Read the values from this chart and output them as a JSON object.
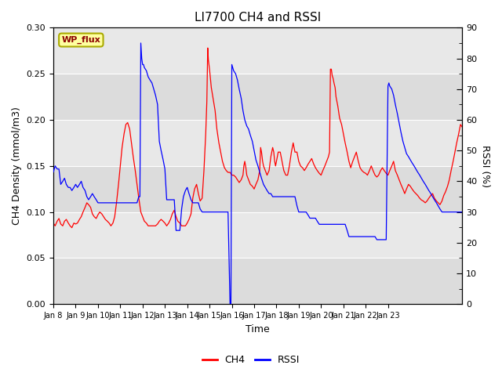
{
  "title": "LI7700 CH4 and RSSI",
  "xlabel": "Time",
  "ylabel_left": "CH4 Density (mmol/m3)",
  "ylabel_right": "RSSI (%)",
  "legend_label": "WP_flux",
  "ch4_color": "#FF0000",
  "rssi_color": "#0000FF",
  "ylim_left": [
    0.0,
    0.3
  ],
  "ylim_right": [
    0,
    90
  ],
  "yticks_left": [
    0.0,
    0.05,
    0.1,
    0.15,
    0.2,
    0.25,
    0.3
  ],
  "yticks_right": [
    0,
    10,
    20,
    30,
    40,
    50,
    60,
    70,
    80,
    90
  ],
  "background_color": "#E8E8E8",
  "figure_bg": "#FFFFFF",
  "tick_labels": [
    "Jan 8",
    "Jan 9",
    "Jan 10",
    "Jan 11",
    "Jan 12",
    "Jan 13",
    "Jan 14",
    "Jan 15",
    "Jan 16",
    "Jan 17",
    "Jan 18",
    "Jan 19",
    "Jan 20",
    "Jan 21",
    "Jan 22",
    "Jan 23"
  ],
  "ch4_data": [
    [
      0,
      0.088
    ],
    [
      0.08,
      0.085
    ],
    [
      0.17,
      0.09
    ],
    [
      0.25,
      0.093
    ],
    [
      0.33,
      0.087
    ],
    [
      0.42,
      0.085
    ],
    [
      0.5,
      0.09
    ],
    [
      0.58,
      0.092
    ],
    [
      0.67,
      0.088
    ],
    [
      0.75,
      0.085
    ],
    [
      0.83,
      0.083
    ],
    [
      0.92,
      0.088
    ],
    [
      1.0,
      0.087
    ],
    [
      1.08,
      0.088
    ],
    [
      1.17,
      0.092
    ],
    [
      1.25,
      0.095
    ],
    [
      1.33,
      0.1
    ],
    [
      1.42,
      0.105
    ],
    [
      1.5,
      0.11
    ],
    [
      1.58,
      0.108
    ],
    [
      1.67,
      0.105
    ],
    [
      1.75,
      0.098
    ],
    [
      1.83,
      0.095
    ],
    [
      1.92,
      0.093
    ],
    [
      2.0,
      0.097
    ],
    [
      2.08,
      0.1
    ],
    [
      2.17,
      0.098
    ],
    [
      2.25,
      0.095
    ],
    [
      2.33,
      0.092
    ],
    [
      2.42,
      0.09
    ],
    [
      2.5,
      0.088
    ],
    [
      2.58,
      0.085
    ],
    [
      2.67,
      0.088
    ],
    [
      2.75,
      0.095
    ],
    [
      2.83,
      0.11
    ],
    [
      2.92,
      0.13
    ],
    [
      3.0,
      0.15
    ],
    [
      3.08,
      0.17
    ],
    [
      3.17,
      0.185
    ],
    [
      3.25,
      0.195
    ],
    [
      3.33,
      0.197
    ],
    [
      3.42,
      0.19
    ],
    [
      3.5,
      0.175
    ],
    [
      3.58,
      0.16
    ],
    [
      3.67,
      0.145
    ],
    [
      3.75,
      0.13
    ],
    [
      3.83,
      0.115
    ],
    [
      3.92,
      0.1
    ],
    [
      4.0,
      0.095
    ],
    [
      4.08,
      0.09
    ],
    [
      4.17,
      0.088
    ],
    [
      4.25,
      0.085
    ],
    [
      4.33,
      0.085
    ],
    [
      4.42,
      0.085
    ],
    [
      4.5,
      0.085
    ],
    [
      4.58,
      0.085
    ],
    [
      4.67,
      0.087
    ],
    [
      4.75,
      0.09
    ],
    [
      4.83,
      0.092
    ],
    [
      4.92,
      0.09
    ],
    [
      5.0,
      0.088
    ],
    [
      5.08,
      0.085
    ],
    [
      5.17,
      0.088
    ],
    [
      5.25,
      0.092
    ],
    [
      5.33,
      0.098
    ],
    [
      5.42,
      0.102
    ],
    [
      5.5,
      0.095
    ],
    [
      5.58,
      0.09
    ],
    [
      5.67,
      0.088
    ],
    [
      5.75,
      0.085
    ],
    [
      5.83,
      0.085
    ],
    [
      5.92,
      0.085
    ],
    [
      6.0,
      0.088
    ],
    [
      6.08,
      0.092
    ],
    [
      6.17,
      0.098
    ],
    [
      6.25,
      0.115
    ],
    [
      6.33,
      0.125
    ],
    [
      6.42,
      0.13
    ],
    [
      6.5,
      0.12
    ],
    [
      6.58,
      0.112
    ],
    [
      6.67,
      0.115
    ],
    [
      6.75,
      0.145
    ],
    [
      6.83,
      0.185
    ],
    [
      6.88,
      0.22
    ],
    [
      6.92,
      0.278
    ],
    [
      6.95,
      0.265
    ],
    [
      7.0,
      0.255
    ],
    [
      7.04,
      0.245
    ],
    [
      7.08,
      0.235
    ],
    [
      7.17,
      0.222
    ],
    [
      7.25,
      0.21
    ],
    [
      7.33,
      0.19
    ],
    [
      7.42,
      0.175
    ],
    [
      7.5,
      0.165
    ],
    [
      7.58,
      0.155
    ],
    [
      7.67,
      0.148
    ],
    [
      7.75,
      0.145
    ],
    [
      7.83,
      0.143
    ],
    [
      7.92,
      0.143
    ],
    [
      8.0,
      0.14
    ],
    [
      8.08,
      0.14
    ],
    [
      8.17,
      0.138
    ],
    [
      8.25,
      0.135
    ],
    [
      8.33,
      0.132
    ],
    [
      8.42,
      0.135
    ],
    [
      8.5,
      0.14
    ],
    [
      8.54,
      0.15
    ],
    [
      8.58,
      0.155
    ],
    [
      8.63,
      0.148
    ],
    [
      8.67,
      0.14
    ],
    [
      8.75,
      0.135
    ],
    [
      8.83,
      0.13
    ],
    [
      8.92,
      0.128
    ],
    [
      9.0,
      0.125
    ],
    [
      9.08,
      0.13
    ],
    [
      9.17,
      0.135
    ],
    [
      9.25,
      0.145
    ],
    [
      9.29,
      0.17
    ],
    [
      9.33,
      0.165
    ],
    [
      9.38,
      0.155
    ],
    [
      9.42,
      0.15
    ],
    [
      9.5,
      0.145
    ],
    [
      9.58,
      0.14
    ],
    [
      9.67,
      0.145
    ],
    [
      9.75,
      0.16
    ],
    [
      9.83,
      0.17
    ],
    [
      9.88,
      0.165
    ],
    [
      9.92,
      0.155
    ],
    [
      9.96,
      0.15
    ],
    [
      10.0,
      0.155
    ],
    [
      10.08,
      0.165
    ],
    [
      10.17,
      0.165
    ],
    [
      10.25,
      0.155
    ],
    [
      10.33,
      0.145
    ],
    [
      10.42,
      0.14
    ],
    [
      10.5,
      0.14
    ],
    [
      10.58,
      0.15
    ],
    [
      10.67,
      0.165
    ],
    [
      10.75,
      0.175
    ],
    [
      10.83,
      0.165
    ],
    [
      10.92,
      0.165
    ],
    [
      11.0,
      0.155
    ],
    [
      11.08,
      0.15
    ],
    [
      11.17,
      0.148
    ],
    [
      11.25,
      0.145
    ],
    [
      11.33,
      0.148
    ],
    [
      11.42,
      0.152
    ],
    [
      11.5,
      0.155
    ],
    [
      11.58,
      0.158
    ],
    [
      11.67,
      0.152
    ],
    [
      11.75,
      0.148
    ],
    [
      11.83,
      0.145
    ],
    [
      11.92,
      0.142
    ],
    [
      12.0,
      0.14
    ],
    [
      12.08,
      0.145
    ],
    [
      12.17,
      0.15
    ],
    [
      12.25,
      0.155
    ],
    [
      12.33,
      0.16
    ],
    [
      12.38,
      0.165
    ],
    [
      12.42,
      0.255
    ],
    [
      12.46,
      0.255
    ],
    [
      12.5,
      0.248
    ],
    [
      12.54,
      0.245
    ],
    [
      12.58,
      0.24
    ],
    [
      12.63,
      0.235
    ],
    [
      12.67,
      0.225
    ],
    [
      12.75,
      0.215
    ],
    [
      12.83,
      0.202
    ],
    [
      12.92,
      0.195
    ],
    [
      13.0,
      0.185
    ],
    [
      13.08,
      0.175
    ],
    [
      13.17,
      0.165
    ],
    [
      13.25,
      0.155
    ],
    [
      13.33,
      0.148
    ],
    [
      13.42,
      0.155
    ],
    [
      13.5,
      0.16
    ],
    [
      13.58,
      0.165
    ],
    [
      13.67,
      0.155
    ],
    [
      13.75,
      0.148
    ],
    [
      13.83,
      0.145
    ],
    [
      13.92,
      0.143
    ],
    [
      14.0,
      0.142
    ],
    [
      14.08,
      0.14
    ],
    [
      14.17,
      0.145
    ],
    [
      14.25,
      0.15
    ],
    [
      14.33,
      0.145
    ],
    [
      14.42,
      0.14
    ],
    [
      14.5,
      0.138
    ],
    [
      14.58,
      0.14
    ],
    [
      14.67,
      0.145
    ],
    [
      14.75,
      0.148
    ],
    [
      14.83,
      0.145
    ],
    [
      14.92,
      0.142
    ],
    [
      15.0,
      0.14
    ],
    [
      15.08,
      0.145
    ],
    [
      15.17,
      0.15
    ],
    [
      15.25,
      0.155
    ],
    [
      15.33,
      0.145
    ],
    [
      15.42,
      0.14
    ],
    [
      15.5,
      0.135
    ],
    [
      15.58,
      0.13
    ],
    [
      15.67,
      0.125
    ],
    [
      15.75,
      0.12
    ],
    [
      15.83,
      0.125
    ],
    [
      15.92,
      0.13
    ],
    [
      16.0,
      0.128
    ],
    [
      16.08,
      0.125
    ],
    [
      16.17,
      0.122
    ],
    [
      16.25,
      0.12
    ],
    [
      16.33,
      0.118
    ],
    [
      16.42,
      0.115
    ],
    [
      16.5,
      0.113
    ],
    [
      16.58,
      0.112
    ],
    [
      16.67,
      0.11
    ],
    [
      16.75,
      0.112
    ],
    [
      16.83,
      0.115
    ],
    [
      16.92,
      0.118
    ],
    [
      17.0,
      0.12
    ],
    [
      17.08,
      0.115
    ],
    [
      17.17,
      0.112
    ],
    [
      17.25,
      0.11
    ],
    [
      17.33,
      0.108
    ],
    [
      17.42,
      0.112
    ],
    [
      17.5,
      0.118
    ],
    [
      17.58,
      0.122
    ],
    [
      17.67,
      0.128
    ],
    [
      17.75,
      0.135
    ],
    [
      17.83,
      0.145
    ],
    [
      17.92,
      0.155
    ],
    [
      18.0,
      0.165
    ],
    [
      18.08,
      0.175
    ],
    [
      18.17,
      0.185
    ],
    [
      18.25,
      0.195
    ],
    [
      18.33,
      0.192
    ]
  ],
  "rssi_data": [
    [
      0,
      43
    ],
    [
      0.08,
      45
    ],
    [
      0.17,
      44
    ],
    [
      0.25,
      44
    ],
    [
      0.33,
      39
    ],
    [
      0.42,
      40
    ],
    [
      0.5,
      41
    ],
    [
      0.58,
      39
    ],
    [
      0.67,
      38
    ],
    [
      0.75,
      38
    ],
    [
      0.83,
      37
    ],
    [
      0.92,
      38
    ],
    [
      1.0,
      39
    ],
    [
      1.08,
      38
    ],
    [
      1.17,
      39
    ],
    [
      1.25,
      40
    ],
    [
      1.33,
      38
    ],
    [
      1.42,
      37
    ],
    [
      1.5,
      35
    ],
    [
      1.58,
      34
    ],
    [
      1.67,
      35
    ],
    [
      1.75,
      36
    ],
    [
      1.83,
      35
    ],
    [
      1.92,
      34
    ],
    [
      2.0,
      33
    ],
    [
      2.08,
      33
    ],
    [
      2.17,
      33
    ],
    [
      2.25,
      33
    ],
    [
      2.33,
      33
    ],
    [
      2.42,
      33
    ],
    [
      2.5,
      33
    ],
    [
      2.58,
      33
    ],
    [
      2.67,
      33
    ],
    [
      2.75,
      33
    ],
    [
      2.83,
      33
    ],
    [
      2.92,
      33
    ],
    [
      3.0,
      33
    ],
    [
      3.08,
      33
    ],
    [
      3.17,
      33
    ],
    [
      3.25,
      33
    ],
    [
      3.33,
      33
    ],
    [
      3.42,
      33
    ],
    [
      3.5,
      33
    ],
    [
      3.58,
      33
    ],
    [
      3.67,
      33
    ],
    [
      3.75,
      33
    ],
    [
      3.83,
      35
    ],
    [
      3.88,
      35
    ],
    [
      3.92,
      85
    ],
    [
      3.96,
      80
    ],
    [
      4.0,
      78
    ],
    [
      4.04,
      78
    ],
    [
      4.08,
      77
    ],
    [
      4.17,
      76
    ],
    [
      4.25,
      74
    ],
    [
      4.33,
      73
    ],
    [
      4.42,
      72
    ],
    [
      4.5,
      70
    ],
    [
      4.58,
      68
    ],
    [
      4.67,
      65
    ],
    [
      4.75,
      53
    ],
    [
      4.83,
      50
    ],
    [
      4.92,
      47
    ],
    [
      5.0,
      44
    ],
    [
      5.08,
      34
    ],
    [
      5.17,
      34
    ],
    [
      5.25,
      34
    ],
    [
      5.33,
      34
    ],
    [
      5.42,
      34
    ],
    [
      5.5,
      24
    ],
    [
      5.58,
      24
    ],
    [
      5.67,
      24
    ],
    [
      5.75,
      31
    ],
    [
      5.83,
      35
    ],
    [
      5.92,
      37
    ],
    [
      6.0,
      38
    ],
    [
      6.08,
      36
    ],
    [
      6.17,
      34
    ],
    [
      6.25,
      33
    ],
    [
      6.33,
      33
    ],
    [
      6.42,
      33
    ],
    [
      6.5,
      33
    ],
    [
      6.58,
      31
    ],
    [
      6.67,
      30
    ],
    [
      6.75,
      30
    ],
    [
      6.83,
      30
    ],
    [
      6.92,
      30
    ],
    [
      7.0,
      30
    ],
    [
      7.08,
      30
    ],
    [
      7.17,
      30
    ],
    [
      7.25,
      30
    ],
    [
      7.33,
      30
    ],
    [
      7.42,
      30
    ],
    [
      7.5,
      30
    ],
    [
      7.58,
      30
    ],
    [
      7.67,
      30
    ],
    [
      7.75,
      30
    ],
    [
      7.83,
      30
    ],
    [
      7.92,
      0
    ],
    [
      7.95,
      0
    ],
    [
      7.96,
      0
    ],
    [
      8.0,
      78
    ],
    [
      8.04,
      77
    ],
    [
      8.08,
      76
    ],
    [
      8.17,
      75
    ],
    [
      8.25,
      73
    ],
    [
      8.33,
      70
    ],
    [
      8.42,
      67
    ],
    [
      8.5,
      63
    ],
    [
      8.58,
      60
    ],
    [
      8.67,
      58
    ],
    [
      8.75,
      57
    ],
    [
      8.83,
      55
    ],
    [
      8.92,
      53
    ],
    [
      9.0,
      50
    ],
    [
      9.08,
      47
    ],
    [
      9.17,
      45
    ],
    [
      9.25,
      43
    ],
    [
      9.33,
      41
    ],
    [
      9.42,
      39
    ],
    [
      9.5,
      38
    ],
    [
      9.58,
      37
    ],
    [
      9.67,
      36
    ],
    [
      9.75,
      36
    ],
    [
      9.83,
      35
    ],
    [
      9.92,
      35
    ],
    [
      10.0,
      35
    ],
    [
      10.08,
      35
    ],
    [
      10.17,
      35
    ],
    [
      10.25,
      35
    ],
    [
      10.33,
      35
    ],
    [
      10.42,
      35
    ],
    [
      10.5,
      35
    ],
    [
      10.58,
      35
    ],
    [
      10.67,
      35
    ],
    [
      10.75,
      35
    ],
    [
      10.83,
      35
    ],
    [
      10.92,
      32
    ],
    [
      11.0,
      30
    ],
    [
      11.08,
      30
    ],
    [
      11.17,
      30
    ],
    [
      11.25,
      30
    ],
    [
      11.33,
      30
    ],
    [
      11.42,
      29
    ],
    [
      11.5,
      28
    ],
    [
      11.58,
      28
    ],
    [
      11.67,
      28
    ],
    [
      11.75,
      28
    ],
    [
      11.83,
      27
    ],
    [
      11.92,
      26
    ],
    [
      12.0,
      26
    ],
    [
      12.08,
      26
    ],
    [
      12.17,
      26
    ],
    [
      12.25,
      26
    ],
    [
      12.33,
      26
    ],
    [
      12.42,
      26
    ],
    [
      12.5,
      26
    ],
    [
      12.58,
      26
    ],
    [
      12.67,
      26
    ],
    [
      12.75,
      26
    ],
    [
      12.83,
      26
    ],
    [
      12.92,
      26
    ],
    [
      13.0,
      26
    ],
    [
      13.08,
      26
    ],
    [
      13.17,
      24
    ],
    [
      13.25,
      22
    ],
    [
      13.33,
      22
    ],
    [
      13.42,
      22
    ],
    [
      13.5,
      22
    ],
    [
      13.58,
      22
    ],
    [
      13.67,
      22
    ],
    [
      13.75,
      22
    ],
    [
      13.83,
      22
    ],
    [
      13.92,
      22
    ],
    [
      14.0,
      22
    ],
    [
      14.08,
      22
    ],
    [
      14.17,
      22
    ],
    [
      14.25,
      22
    ],
    [
      14.33,
      22
    ],
    [
      14.42,
      22
    ],
    [
      14.5,
      21
    ],
    [
      14.58,
      21
    ],
    [
      14.67,
      21
    ],
    [
      14.75,
      21
    ],
    [
      14.83,
      21
    ],
    [
      14.92,
      21
    ],
    [
      15.0,
      71
    ],
    [
      15.04,
      72
    ],
    [
      15.08,
      71
    ],
    [
      15.17,
      70
    ],
    [
      15.25,
      68
    ],
    [
      15.33,
      65
    ],
    [
      15.42,
      62
    ],
    [
      15.5,
      59
    ],
    [
      15.58,
      56
    ],
    [
      15.67,
      53
    ],
    [
      15.75,
      51
    ],
    [
      15.83,
      49
    ],
    [
      15.92,
      48
    ],
    [
      16.0,
      47
    ],
    [
      16.08,
      46
    ],
    [
      16.17,
      45
    ],
    [
      16.25,
      44
    ],
    [
      16.33,
      43
    ],
    [
      16.42,
      42
    ],
    [
      16.5,
      41
    ],
    [
      16.58,
      40
    ],
    [
      16.67,
      39
    ],
    [
      16.75,
      38
    ],
    [
      16.83,
      37
    ],
    [
      16.92,
      36
    ],
    [
      17.0,
      35
    ],
    [
      17.08,
      34
    ],
    [
      17.17,
      33
    ],
    [
      17.25,
      32
    ],
    [
      17.33,
      31
    ],
    [
      17.42,
      30
    ],
    [
      17.5,
      30
    ],
    [
      17.58,
      30
    ],
    [
      17.67,
      30
    ],
    [
      17.75,
      30
    ],
    [
      17.83,
      30
    ],
    [
      17.92,
      30
    ],
    [
      18.0,
      30
    ],
    [
      18.08,
      30
    ],
    [
      18.17,
      30
    ],
    [
      18.25,
      30
    ],
    [
      18.33,
      30
    ]
  ]
}
